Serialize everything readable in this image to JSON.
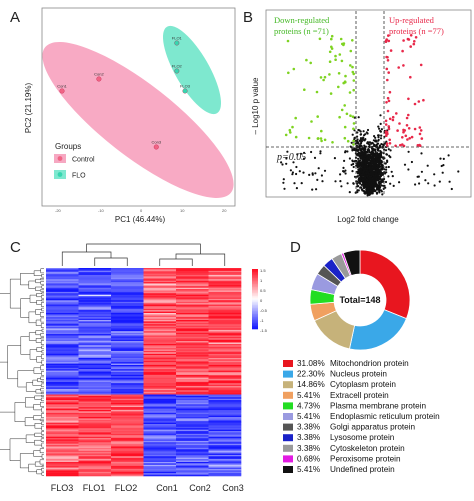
{
  "panels": {
    "a": {
      "letter": "A",
      "xlabel": "PC1 (46.44%)",
      "ylabel": "PC2 (21.19%)",
      "legend_title": "Groups",
      "legend": [
        {
          "name": "Control",
          "color": "#f06585"
        },
        {
          "name": "FLO",
          "color": "#37d6b0"
        }
      ],
      "point_labels": [
        "Con1",
        "Con2",
        "Con3",
        "FLO1",
        "FLO2",
        "FLO3"
      ],
      "ellipse_colors": {
        "control": "#f8aac4",
        "flo": "#7ee8cf"
      }
    },
    "b": {
      "letter": "B",
      "down_label_1": "Down-regulated",
      "down_label_2": "proteins (n =71)",
      "up_label_1": "Up-regulated",
      "up_label_2": "proteins (n =77)",
      "ylabel": "– Log10 p value",
      "xlabel": "Log2 fold change",
      "p_label": "p=0.05",
      "colors": {
        "down": "#7ed321",
        "up": "#e8294a",
        "ns": "#111111"
      }
    },
    "c": {
      "letter": "C",
      "columns": [
        "FLO3",
        "FLO1",
        "FLO2",
        "Con1",
        "Con2",
        "Con3"
      ],
      "scale_ticks": [
        "1.5",
        "1",
        "0.5",
        "0",
        "-0.5",
        "-1",
        "-1.5"
      ]
    },
    "d": {
      "letter": "D",
      "center_label": "Total=148"
    }
  },
  "chart_data": [
    {
      "type": "scatter",
      "panel": "A",
      "xlabel": "PC1 (46.44%)",
      "ylabel": "PC2 (21.19%)",
      "series": [
        {
          "name": "Control",
          "points": [
            {
              "label": "Con1",
              "x": -20,
              "y": 4
            },
            {
              "label": "Con2",
              "x": -11,
              "y": 7
            },
            {
              "label": "Con3",
              "x": 3,
              "y": -10
            }
          ]
        },
        {
          "name": "FLO",
          "points": [
            {
              "label": "FLO1",
              "x": 8,
              "y": 16
            },
            {
              "label": "FLO2",
              "x": 8,
              "y": 9
            },
            {
              "label": "FLO3",
              "x": 10,
              "y": 4
            }
          ]
        }
      ]
    },
    {
      "type": "scatter",
      "panel": "B",
      "title": "volcano",
      "xlabel": "Log2 fold change",
      "ylabel": "– Log10 p value",
      "counts": {
        "down": 71,
        "up": 77
      },
      "threshold_p": 0.05
    },
    {
      "type": "heatmap",
      "panel": "C",
      "columns": [
        "FLO3",
        "FLO1",
        "FLO2",
        "Con1",
        "Con2",
        "Con3"
      ],
      "value_range": [
        -1.5,
        1.5
      ]
    },
    {
      "type": "pie",
      "panel": "D",
      "total": 148,
      "slices": [
        {
          "label": "Mitochondrion protein",
          "percent": 31.08,
          "display": "31.08%",
          "color": "#e8161f"
        },
        {
          "label": "Nucleus protein",
          "percent": 22.3,
          "display": "22.30%",
          "color": "#3aa8e8"
        },
        {
          "label": "Cytoplasm protein",
          "percent": 14.86,
          "display": "14.86%",
          "color": "#c6b27a"
        },
        {
          "label": "Extracell protein",
          "percent": 5.41,
          "display": "5.41%",
          "color": "#f0a060"
        },
        {
          "label": "Plasma membrane protein",
          "percent": 4.73,
          "display": "4.73%",
          "color": "#22dd22"
        },
        {
          "label": "Endoplasmic reticulum protein",
          "percent": 5.41,
          "display": "5.41%",
          "color": "#9a9ae0"
        },
        {
          "label": "Golgi apparatus protein",
          "percent": 3.38,
          "display": "3.38%",
          "color": "#555555"
        },
        {
          "label": "Lysosome protein",
          "percent": 3.38,
          "display": "3.38%",
          "color": "#1a22c8"
        },
        {
          "label": "Cytoskeleton protein",
          "percent": 3.38,
          "display": "3.38%",
          "color": "#9a9a9a"
        },
        {
          "label": "Peroxisome protein",
          "percent": 0.68,
          "display": "0.68%",
          "color": "#e21ae2"
        },
        {
          "label": "Undefined protein",
          "percent": 5.41,
          "display": "5.41%",
          "color": "#111111"
        }
      ]
    }
  ]
}
